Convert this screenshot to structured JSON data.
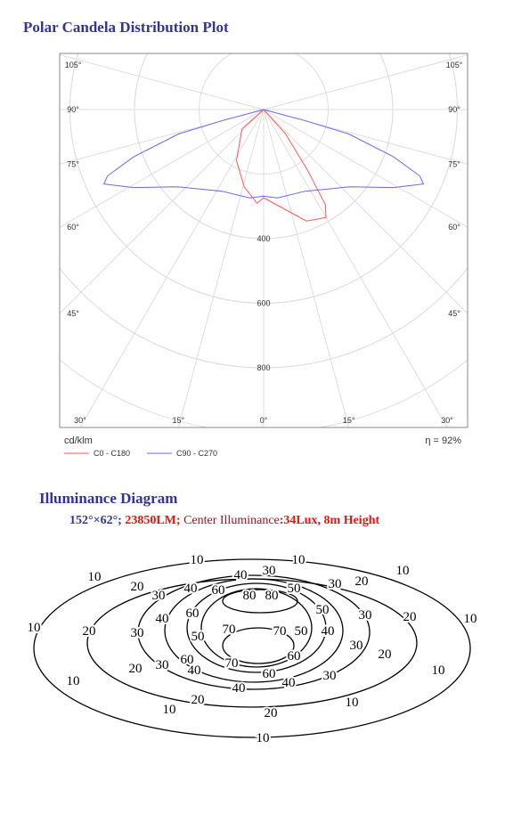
{
  "polar_plot": {
    "title": "Polar Candela Distribution Plot",
    "chart_data": {
      "type": "polar",
      "rlim": [
        0,
        1000
      ],
      "rticks": [
        400,
        600,
        800
      ],
      "angle_ticks": [
        {
          "value": 0,
          "label": "0°"
        },
        {
          "value": 15,
          "label": "15°"
        },
        {
          "value": 30,
          "label": "30°"
        },
        {
          "value": 45,
          "label": "45°"
        },
        {
          "value": 60,
          "label": "60°"
        },
        {
          "value": 75,
          "label": "75°"
        },
        {
          "value": 90,
          "label": "90°"
        },
        {
          "value": 105,
          "label": "105°"
        }
      ],
      "unit": "cd/klm",
      "efficiency": "η = 92%",
      "grid": true,
      "series": [
        {
          "name": "C0 - C180",
          "color": "#ff5555",
          "angles": [
            -90,
            -48,
            -28,
            -14,
            -4,
            0,
            12,
            21,
            30,
            33,
            36,
            42,
            90
          ],
          "values": [
            0,
            90,
            179,
            247,
            291,
            273,
            316,
            370,
            386,
            351,
            229,
            100,
            0
          ]
        },
        {
          "name": "C90 - C270",
          "color": "#6666ff",
          "angles": [
            -90,
            -75,
            -74,
            -70,
            -67,
            -65,
            -59,
            -48,
            -27,
            -9,
            0,
            9,
            27,
            48,
            59,
            65,
            67,
            70,
            74,
            75,
            90
          ],
          "values": [
            0,
            131,
            275,
            428,
            525,
            546,
            469,
            358,
            284,
            277,
            268,
            277,
            284,
            358,
            469,
            546,
            525,
            428,
            275,
            131,
            0
          ]
        }
      ]
    }
  },
  "illuminance": {
    "title": "Illuminance Diagram",
    "subtitle": [
      {
        "text": "152°×62°;",
        "color": "#333399",
        "bold": true
      },
      {
        "text": " 23850LM;",
        "color": "#ee1111",
        "bold": true
      },
      {
        "text": " Center Illuminance",
        "color": "#a01020",
        "bold": false
      },
      {
        "text": ":34Lux, 8m Height",
        "color": "#ee1111",
        "bold": true
      }
    ],
    "contour_labels": [
      10,
      10,
      10,
      10,
      40,
      30,
      20,
      40,
      60,
      50,
      30,
      20,
      30,
      80,
      80,
      60,
      50,
      30,
      20,
      10,
      10,
      20,
      40,
      30,
      50,
      70,
      70,
      50,
      40,
      30,
      20,
      60,
      70,
      60,
      20,
      30,
      40,
      60,
      40,
      30,
      10,
      10,
      40,
      20,
      20,
      10,
      10,
      10
    ]
  }
}
